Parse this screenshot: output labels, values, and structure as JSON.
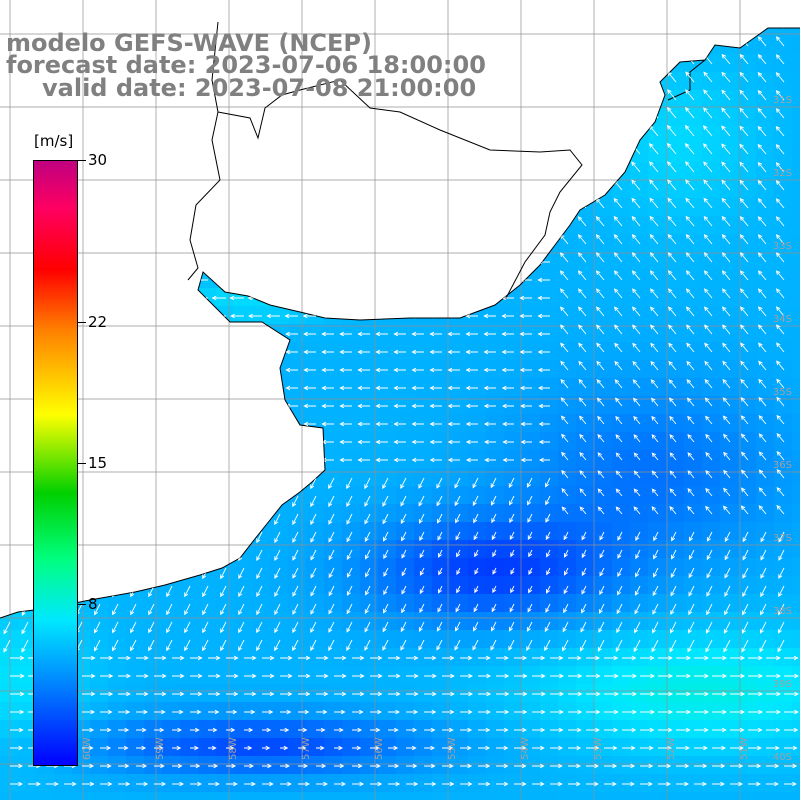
{
  "title": {
    "model": "modelo GEFS-WAVE (NCEP)",
    "forecast": "forecast date: 2023-07-06 18:00:00",
    "valid": "valid date: 2023-07-08 21:00:00"
  },
  "colorbar": {
    "unit": "[m/s]",
    "ticks": [
      {
        "value": 30,
        "label": "30"
      },
      {
        "value": 22,
        "label": "22"
      },
      {
        "value": 15,
        "label": "15"
      },
      {
        "value": 8,
        "label": "8"
      }
    ],
    "min": 0,
    "max": 30
  },
  "map": {
    "lon_range": [
      -61,
      -50
    ],
    "lat_range": [
      -41.2,
      -30.3
    ],
    "lon_labels": [
      "60W",
      "59W",
      "58W",
      "57W",
      "56W",
      "55W",
      "54W",
      "53W",
      "52W",
      "51W"
    ],
    "lat_labels": [
      "31S",
      "32S",
      "33S",
      "34S",
      "35S",
      "36S",
      "37S",
      "38S",
      "39S",
      "40S",
      "41S"
    ],
    "grid": true,
    "label_color": "#a0a0a0",
    "grid_color": "#909090",
    "land_color": "#ffffff",
    "coast_color": "#000000",
    "arrow_color": "#ffffff"
  }
}
